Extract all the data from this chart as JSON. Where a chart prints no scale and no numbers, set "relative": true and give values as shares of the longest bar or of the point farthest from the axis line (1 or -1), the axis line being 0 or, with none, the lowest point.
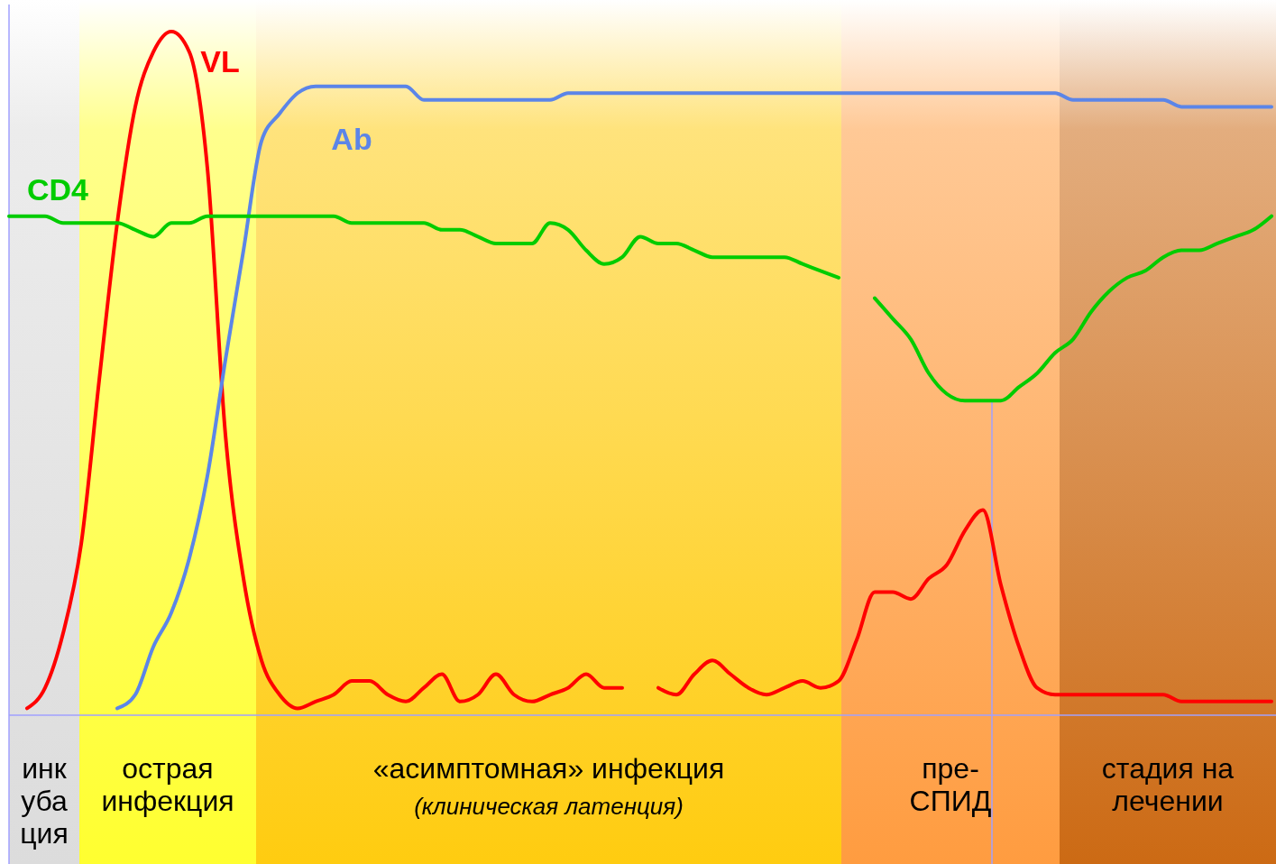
{
  "chart_data": {
    "type": "line",
    "relative": true,
    "categories": [
      null,
      null,
      null,
      null,
      null,
      null,
      null,
      null,
      null,
      null,
      null,
      null,
      null,
      null,
      null,
      null,
      null,
      null,
      null,
      null,
      null,
      null,
      null,
      null,
      null,
      null,
      null,
      null,
      null,
      null,
      null,
      null,
      null,
      null,
      null,
      null,
      null,
      null,
      null,
      null,
      null,
      null,
      null,
      null,
      null,
      null,
      null,
      null,
      null,
      null,
      null,
      null,
      null,
      null,
      null,
      null,
      null,
      null,
      null,
      null,
      null,
      null,
      null,
      null,
      null,
      null,
      null,
      null,
      null,
      null,
      null
    ],
    "series": [
      {
        "name": "VL",
        "color": "#ff0000",
        "values": [
          null,
          0.01,
          0.04,
          0.12,
          0.25,
          0.49,
          0.72,
          0.89,
          0.97,
          1.0,
          0.97,
          0.8,
          0.41,
          0.2,
          0.08,
          0.03,
          0.01,
          0.02,
          0.03,
          0.05,
          0.05,
          0.03,
          0.02,
          0.04,
          0.06,
          0.02,
          0.03,
          0.06,
          0.03,
          0.02,
          0.03,
          0.04,
          0.06,
          0.04,
          0.04,
          null,
          0.04,
          0.03,
          0.06,
          0.08,
          0.06,
          0.04,
          0.03,
          0.04,
          0.05,
          0.04,
          0.05,
          0.11,
          0.18,
          0.18,
          0.17,
          0.2,
          0.22,
          0.27,
          0.3,
          0.19,
          0.1,
          0.04,
          0.03,
          0.03,
          0.03,
          0.03,
          0.03,
          0.03,
          0.03,
          0.02,
          0.02,
          0.02,
          0.02,
          0.02,
          0.02
        ]
      },
      {
        "name": "Ab",
        "color": "#5b85e8",
        "values": [
          null,
          null,
          null,
          null,
          null,
          null,
          0.01,
          0.03,
          0.1,
          0.15,
          0.23,
          0.35,
          0.52,
          0.68,
          0.84,
          0.88,
          0.91,
          0.92,
          0.92,
          0.92,
          0.92,
          0.92,
          0.92,
          0.9,
          0.9,
          0.9,
          0.9,
          0.9,
          0.9,
          0.9,
          0.9,
          0.91,
          0.91,
          0.91,
          0.91,
          0.91,
          0.91,
          0.91,
          0.91,
          0.91,
          0.91,
          0.91,
          0.91,
          0.91,
          0.91,
          0.91,
          0.91,
          0.91,
          0.91,
          0.91,
          0.91,
          0.91,
          0.91,
          0.91,
          0.91,
          0.91,
          0.91,
          0.91,
          0.91,
          0.9,
          0.9,
          0.9,
          0.9,
          0.9,
          0.9,
          0.89,
          0.89,
          0.89,
          0.89,
          0.89,
          0.89
        ]
      },
      {
        "name": "CD4",
        "color": "#00cc00",
        "values": [
          0.73,
          0.73,
          0.73,
          0.72,
          0.72,
          0.72,
          0.72,
          0.71,
          0.7,
          0.72,
          0.72,
          0.73,
          0.73,
          0.73,
          0.73,
          0.73,
          0.73,
          0.73,
          0.73,
          0.72,
          0.72,
          0.72,
          0.72,
          0.72,
          0.71,
          0.71,
          0.7,
          0.69,
          0.69,
          0.69,
          0.72,
          0.71,
          0.68,
          0.66,
          0.67,
          0.7,
          0.69,
          0.69,
          0.68,
          0.67,
          0.67,
          0.67,
          0.67,
          0.67,
          0.66,
          0.65,
          0.64,
          null,
          0.61,
          0.58,
          0.55,
          0.5,
          0.47,
          0.46,
          0.46,
          0.46,
          0.48,
          0.5,
          0.53,
          0.55,
          0.59,
          0.62,
          0.64,
          0.65,
          0.67,
          0.68,
          0.68,
          0.69,
          0.7,
          0.71,
          0.73
        ]
      }
    ],
    "annotations": [
      "инк\nуба\nция",
      "острая\nинфекция",
      "«асимптомная» инфекция\n(клиническая латенция)",
      "пре-\nСПИД",
      "стадия на\nлечении"
    ]
  }
}
